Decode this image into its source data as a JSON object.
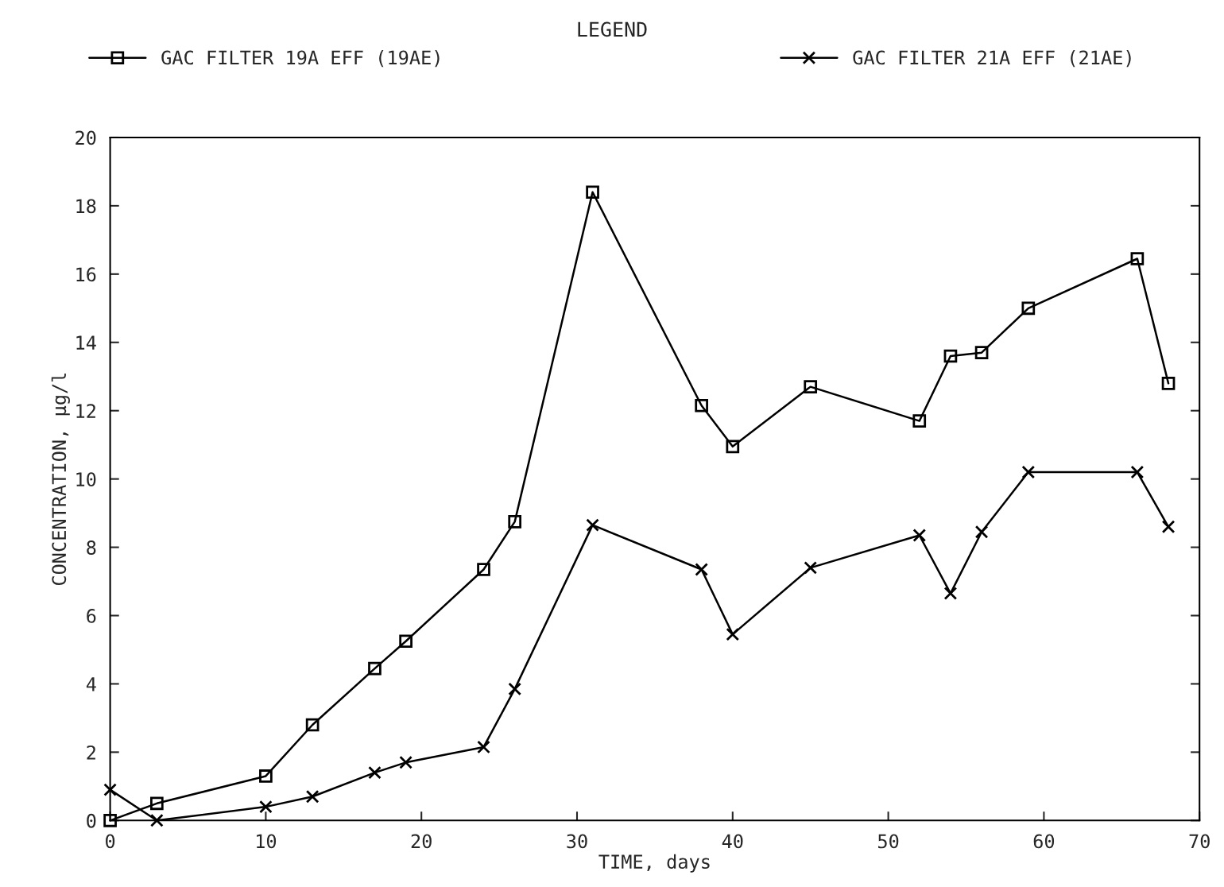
{
  "chart_data": {
    "type": "line",
    "xlabel": "TIME, days",
    "ylabel": "CONCENTRATION, µg/l",
    "legend_title": "LEGEND",
    "x": [
      0,
      3,
      10,
      13,
      17,
      19,
      24,
      26,
      31,
      38,
      40,
      45,
      52,
      54,
      56,
      59,
      66,
      68
    ],
    "series": [
      {
        "name": "GAC FILTER 19A EFF (19AE)",
        "color": "#000000",
        "marker": "square",
        "values": [
          0,
          0.5,
          1.3,
          2.8,
          4.45,
          5.25,
          7.35,
          8.75,
          18.4,
          12.15,
          10.95,
          12.7,
          11.7,
          13.6,
          13.7,
          15.0,
          16.45,
          12.8
        ]
      },
      {
        "name": "GAC FILTER 21A EFF (21AE)",
        "color": "#000000",
        "marker": "cross",
        "values": [
          0.9,
          0,
          0.4,
          0.7,
          1.4,
          1.7,
          2.15,
          3.85,
          8.65,
          7.35,
          5.45,
          7.4,
          8.35,
          6.65,
          8.45,
          10.2,
          10.2,
          8.6
        ]
      }
    ],
    "xlim": [
      0,
      70
    ],
    "xticks": [
      0,
      10,
      20,
      30,
      40,
      50,
      60,
      70
    ],
    "ylim": [
      0,
      20
    ],
    "yticks": [
      0,
      2,
      4,
      6,
      8,
      10,
      12,
      14,
      16,
      18,
      20
    ],
    "grid": false,
    "legend": "top",
    "line_style": "solid"
  }
}
